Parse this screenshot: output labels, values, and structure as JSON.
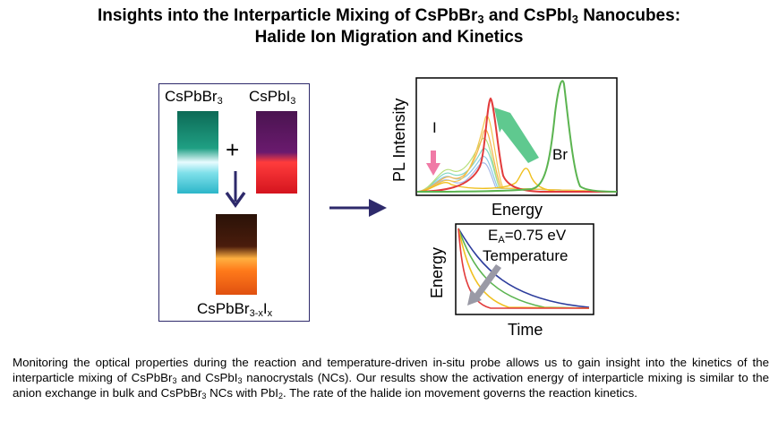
{
  "title": {
    "line1_a": "Insights into the Interparticle Mixing of CsPbBr",
    "line1_b": "3",
    "line1_c": " and CsPbI",
    "line1_d": "3",
    "line1_e": " Nanocubes:",
    "line2": "Halide Ion Migration and Kinetics"
  },
  "scheme": {
    "vial1_label": "CsPbBr",
    "vial1_sub": "3",
    "vial2_label": "CsPbI",
    "vial2_sub": "3",
    "plus": "+",
    "product_label": "CsPbBr",
    "product_sub1": "3-x",
    "product_mid": "I",
    "product_sub2": "x"
  },
  "pl_plot": {
    "ylabel": "PL Intensity",
    "xlabel": "Energy",
    "label_I": "I",
    "label_Br": "Br"
  },
  "kinetics_plot": {
    "ylabel": "Energy",
    "xlabel": "Time",
    "ea_prefix": "E",
    "ea_sub": "A",
    "ea_value": "=0.75 eV",
    "temp_label": "Temperature"
  },
  "caption": {
    "p1": "Monitoring the optical properties during the reaction and temperature-driven in-situ probe allows us to gain insight into the kinetics of the interparticle mixing of CsPbBr",
    "s1": "3",
    "p2": " and CsPbI",
    "s2": "3",
    "p3": " nanocrystals (NCs). Our results show the activation energy of interparticle mixing is similar to the anion exchange in bulk and CsPbBr",
    "s3": "3",
    "p4": " NCs with PbI",
    "s4": "2",
    "p5": ". The rate of the halide ion movement governs the reaction kinetics."
  },
  "colors": {
    "frame": "#2e2a6b",
    "arrow": "#2e2a6b",
    "br_peak": "#5bb450",
    "i_peak": "#e23b3b",
    "arrow_green": "#5fc98f",
    "arrow_pink": "#f07aa6"
  }
}
